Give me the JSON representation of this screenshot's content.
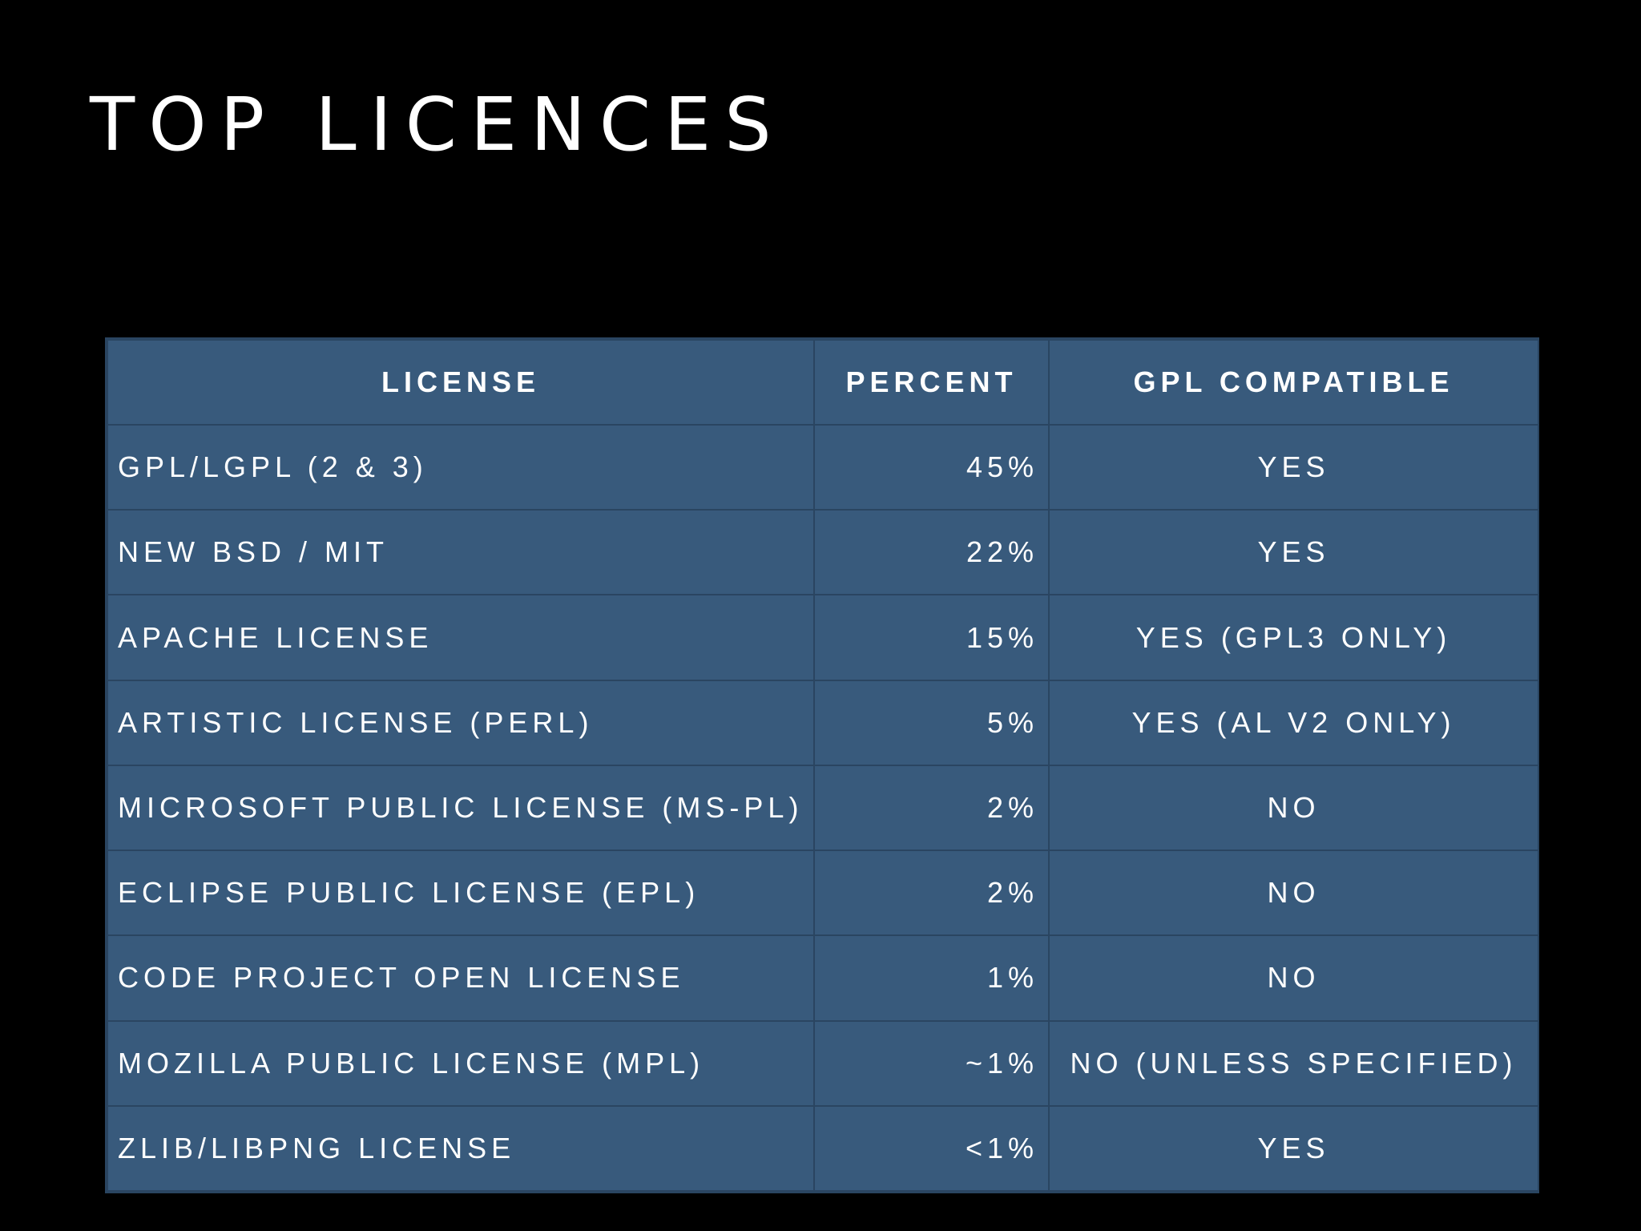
{
  "slide": {
    "title": "TOP LICENCES"
  },
  "table": {
    "headers": {
      "license": "LICENSE",
      "percent": "PERCENT",
      "gpl": "GPL COMPATIBLE"
    },
    "rows": [
      {
        "license": "GPL/LGPL (2 & 3)",
        "percent": "45%",
        "gpl": "YES"
      },
      {
        "license": "NEW BSD / MIT",
        "percent": "22%",
        "gpl": "YES"
      },
      {
        "license": "APACHE LICENSE",
        "percent": "15%",
        "gpl": "YES (GPL3 ONLY)"
      },
      {
        "license": "ARTISTIC LICENSE (PERL)",
        "percent": "5%",
        "gpl": "YES (AL V2 ONLY)"
      },
      {
        "license": "MICROSOFT PUBLIC LICENSE (MS-PL)",
        "percent": "2%",
        "gpl": "NO"
      },
      {
        "license": "ECLIPSE PUBLIC LICENSE (EPL)",
        "percent": "2%",
        "gpl": "NO"
      },
      {
        "license": "CODE PROJECT OPEN LICENSE",
        "percent": "1%",
        "gpl": "NO"
      },
      {
        "license": "MOZILLA PUBLIC LICENSE (MPL)",
        "percent": "~1%",
        "gpl": "NO (UNLESS SPECIFIED)"
      },
      {
        "license": "ZLIB/LIBPNG LICENSE",
        "percent": "<1%",
        "gpl": "YES"
      }
    ]
  },
  "colors": {
    "background": "#000000",
    "table_fill": "#385a7c",
    "table_border": "#2a4561",
    "text": "#ffffff"
  }
}
